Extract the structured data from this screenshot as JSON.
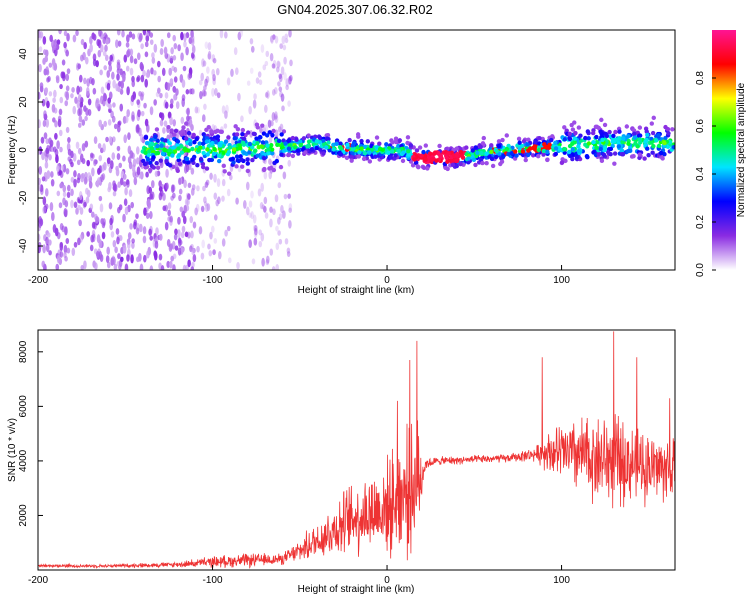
{
  "title": "GN04.2025.307.06.32.R02",
  "chart_data": [
    {
      "type": "heatmap",
      "name": "spectrogram",
      "xlabel": "Height of straight line (km)",
      "ylabel": "Frequency (Hz)",
      "xlim": [
        -200,
        165
      ],
      "ylim": [
        -50,
        50
      ],
      "xticks": [
        -200,
        -100,
        0,
        100
      ],
      "yticks": [
        -40,
        -20,
        0,
        20,
        40
      ],
      "colorbar": {
        "label": "Normalized spectral amplitude",
        "range": [
          0,
          1
        ],
        "ticks": [
          0.0,
          0.2,
          0.4,
          0.6,
          0.8
        ]
      },
      "center_frequency_track": {
        "x": [
          -140,
          -110,
          -90,
          -70,
          -50,
          -40,
          -30,
          -10,
          10,
          17,
          30,
          45,
          55,
          70,
          90,
          110,
          130,
          150,
          165
        ],
        "y": [
          0,
          0,
          0,
          1,
          2,
          3,
          1,
          0,
          0,
          -3,
          -3,
          -3,
          -1,
          0,
          1,
          2,
          3,
          3,
          3
        ]
      },
      "colors": [
        "#ffffff",
        "#8a2be2",
        "#0000ff",
        "#00e5ff",
        "#00ff00",
        "#ffff00",
        "#ff0000",
        "#ff1493"
      ]
    },
    {
      "type": "line",
      "name": "snr",
      "xlabel": "Height of straight line (km)",
      "ylabel": "SNR (10 * v/v)",
      "xlim": [
        -200,
        165
      ],
      "ylim": [
        0,
        8800
      ],
      "xticks": [
        -200,
        -100,
        0,
        100
      ],
      "yticks": [
        2000,
        4000,
        6000,
        8000
      ],
      "line_color": "#ee3333",
      "envelope": {
        "x": [
          -200,
          -160,
          -120,
          -100,
          -80,
          -60,
          -50,
          -40,
          -30,
          -20,
          -10,
          0,
          10,
          18,
          22,
          30,
          50,
          70,
          85,
          92,
          100,
          110,
          120,
          130,
          140,
          150,
          165
        ],
        "mean": [
          150,
          150,
          200,
          300,
          350,
          400,
          700,
          1100,
          1500,
          1900,
          2100,
          2300,
          2800,
          3200,
          3900,
          4000,
          4050,
          4100,
          4250,
          4350,
          4300,
          4200,
          4100,
          4000,
          3900,
          3800,
          3700
        ],
        "spread": [
          60,
          60,
          100,
          200,
          250,
          200,
          400,
          700,
          1000,
          1300,
          1500,
          1700,
          2300,
          2200,
          200,
          150,
          150,
          150,
          250,
          700,
          1100,
          1400,
          1600,
          1700,
          1400,
          1300,
          1200
        ]
      },
      "peaks": [
        {
          "x": 17,
          "y": 8400
        },
        {
          "x": 13,
          "y": 7700
        },
        {
          "x": 6,
          "y": 6200
        },
        {
          "x": 89,
          "y": 7800
        },
        {
          "x": 130,
          "y": 8750
        },
        {
          "x": 143,
          "y": 7800
        },
        {
          "x": 162,
          "y": 6300
        }
      ]
    }
  ]
}
